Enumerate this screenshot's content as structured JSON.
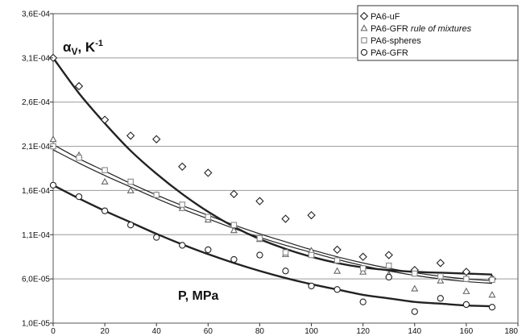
{
  "chart_data": {
    "type": "scatter",
    "y_label": "α",
    "y_label_sub": "V",
    "y_label_unit": ", K",
    "y_label_sup": "-1",
    "x_label": "P, MPa",
    "xlim": [
      0,
      180
    ],
    "ylim": [
      1e-05,
      0.00036
    ],
    "x_ticks": [
      0,
      20,
      40,
      60,
      80,
      100,
      120,
      140,
      160,
      180
    ],
    "x_tick_labels": [
      "0",
      "20",
      "40",
      "60",
      "80",
      "100",
      "120",
      "140",
      "160",
      "180"
    ],
    "y_ticks": [
      1e-05,
      6e-05,
      0.00011,
      0.00016,
      0.00021,
      0.00026,
      0.00031,
      0.00036
    ],
    "y_tick_labels": [
      "1,0E-05",
      "6,0E-05",
      "1,1E-04",
      "1,6E-04",
      "2,1E-04",
      "2,6E-04",
      "3,1E-04",
      "3,6E-04"
    ],
    "grid": true,
    "legend_position": "top-right",
    "series": [
      {
        "name": "PA6-uF",
        "marker": "diamond",
        "italic": false,
        "x": [
          0,
          10,
          20,
          30,
          40,
          50,
          60,
          70,
          80,
          90,
          100,
          110,
          120,
          130,
          140,
          150,
          160,
          170
        ],
        "y": [
          0.00031,
          0.000278,
          0.00024,
          0.000222,
          0.000218,
          0.000187,
          0.00018,
          0.000156,
          0.000148,
          0.000128,
          0.000132,
          9.3e-05,
          8.5e-05,
          8.7e-05,
          7e-05,
          7.8e-05,
          6.8e-05,
          6e-05
        ],
        "trend": [
          0.00031,
          0.00027,
          0.000236,
          0.000205,
          0.000179,
          0.000156,
          0.000136,
          0.000119,
          0.000105,
          9.4e-05,
          8.5e-05,
          7.8e-05,
          7.3e-05,
          7e-05,
          6.8e-05,
          6.7e-05,
          6.6e-05,
          6.5e-05
        ],
        "trend_width": 2.4
      },
      {
        "name": "PA6-GFR rule of mixtures",
        "marker": "triangle",
        "italic": true,
        "x": [
          0,
          10,
          20,
          30,
          40,
          50,
          60,
          70,
          80,
          90,
          100,
          110,
          120,
          130,
          140,
          150,
          160,
          170
        ],
        "y": [
          0.000218,
          0.0002,
          0.00017,
          0.00016,
          0.000155,
          0.00014,
          0.000127,
          0.000115,
          0.000105,
          8.8e-05,
          9.2e-05,
          6.9e-05,
          6.8e-05,
          6.5e-05,
          4.9e-05,
          5.8e-05,
          4.6e-05,
          4.2e-05
        ],
        "trend": [
          0.000212,
          0.000196,
          0.000182,
          0.000168,
          0.000155,
          0.000143,
          0.000132,
          0.000121,
          0.000111,
          0.000102,
          9.3e-05,
          8.5e-05,
          7.8e-05,
          7.2e-05,
          6.7e-05,
          6.3e-05,
          6e-05,
          5.8e-05
        ],
        "trend_width": 1.2
      },
      {
        "name": "PA6-spheres",
        "marker": "square",
        "italic": false,
        "x": [
          0,
          10,
          20,
          30,
          40,
          50,
          60,
          70,
          80,
          90,
          100,
          110,
          120,
          130,
          140,
          150,
          160,
          170
        ],
        "y": [
          0.00021,
          0.000197,
          0.000183,
          0.00017,
          0.000155,
          0.000144,
          0.00013,
          0.000121,
          0.000106,
          9e-05,
          8.7e-05,
          8.1e-05,
          7.2e-05,
          7.5e-05,
          6.6e-05,
          6.3e-05,
          6e-05,
          5.9e-05
        ],
        "trend": [
          0.000206,
          0.000191,
          0.000177,
          0.000164,
          0.000151,
          0.000139,
          0.000128,
          0.000117,
          0.000107,
          9.8e-05,
          9e-05,
          8.2e-05,
          7.5e-05,
          6.9e-05,
          6.4e-05,
          6e-05,
          5.7e-05,
          5.5e-05
        ],
        "trend_width": 1.2
      },
      {
        "name": "PA6-GFR",
        "marker": "circle",
        "italic": false,
        "x": [
          0,
          10,
          20,
          30,
          40,
          50,
          60,
          70,
          80,
          90,
          100,
          110,
          120,
          130,
          140,
          150,
          160,
          170
        ],
        "y": [
          0.000166,
          0.000153,
          0.000137,
          0.000121,
          0.000107,
          9.8e-05,
          9.3e-05,
          8.2e-05,
          8.7e-05,
          6.9e-05,
          5.2e-05,
          4.8e-05,
          3.4e-05,
          6.2e-05,
          2.3e-05,
          3.8e-05,
          3.1e-05,
          2.8e-05
        ],
        "trend": [
          0.000166,
          0.000151,
          0.000137,
          0.000124,
          0.000111,
          9.9e-05,
          8.8e-05,
          7.8e-05,
          6.9e-05,
          6.1e-05,
          5.4e-05,
          4.8e-05,
          4.2e-05,
          3.8e-05,
          3.4e-05,
          3.2e-05,
          3e-05,
          2.9e-05
        ],
        "trend_width": 2.4
      }
    ]
  }
}
